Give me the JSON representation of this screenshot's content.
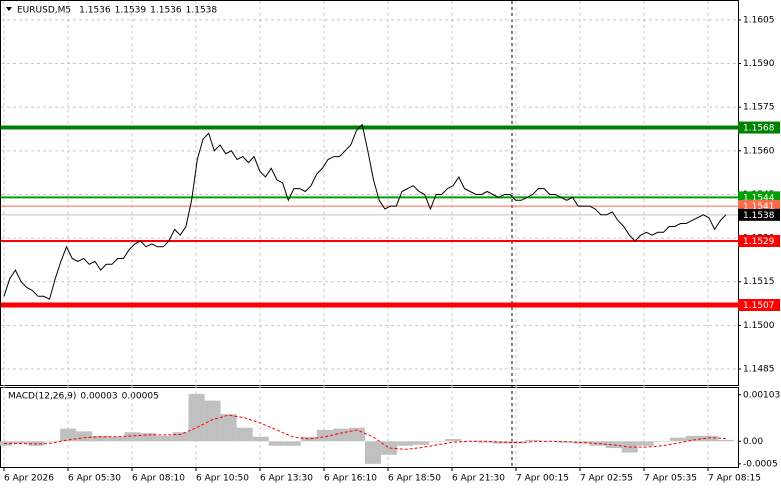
{
  "chart_data": [
    {
      "type": "line",
      "title": "EURUSD,M5",
      "ohlc": [
        1.1536,
        1.1539,
        1.1536,
        1.1538
      ],
      "color": "#000000",
      "values": [
        1.151,
        1.1516,
        1.1519,
        1.1515,
        1.1513,
        1.1512,
        1.151,
        1.151,
        1.1509,
        1.1516,
        1.1522,
        1.1527,
        1.1523,
        1.1522,
        1.1523,
        1.1521,
        1.1522,
        1.1519,
        1.1521,
        1.1521,
        1.1523,
        1.1523,
        1.1526,
        1.1528,
        1.1529,
        1.1527,
        1.1528,
        1.1527,
        1.1527,
        1.1529,
        1.1533,
        1.1531,
        1.1534,
        1.1543,
        1.1557,
        1.1564,
        1.1566,
        1.156,
        1.1562,
        1.1559,
        1.156,
        1.1557,
        1.1558,
        1.1556,
        1.1558,
        1.1553,
        1.1551,
        1.1554,
        1.155,
        1.1549,
        1.1543,
        1.1547,
        1.1547,
        1.1546,
        1.1548,
        1.1552,
        1.1554,
        1.1557,
        1.1558,
        1.1558,
        1.156,
        1.1562,
        1.1567,
        1.1569,
        1.156,
        1.155,
        1.1543,
        1.154,
        1.1541,
        1.1541,
        1.1546,
        1.1547,
        1.1548,
        1.1546,
        1.1545,
        1.154,
        1.1545,
        1.1545,
        1.1547,
        1.1548,
        1.1551,
        1.1547,
        1.1546,
        1.1545,
        1.1545,
        1.1546,
        1.1545,
        1.1544,
        1.1545,
        1.1545,
        1.1543,
        1.1543,
        1.1544,
        1.1545,
        1.1547,
        1.1547,
        1.1545,
        1.1545,
        1.1544,
        1.1543,
        1.1544,
        1.1541,
        1.1541,
        1.1541,
        1.154,
        1.1538,
        1.1538,
        1.1539,
        1.1536,
        1.1534,
        1.1531,
        1.1529,
        1.1531,
        1.1532,
        1.1531,
        1.1532,
        1.1532,
        1.1534,
        1.1534,
        1.1535,
        1.1535,
        1.1536,
        1.1537,
        1.1538,
        1.1537,
        1.1533,
        1.1536,
        1.1538
      ],
      "x_labels": [
        "6 Apr 2026",
        "6 Apr 05:30",
        "6 Apr 08:10",
        "6 Apr 10:50",
        "6 Apr 13:30",
        "6 Apr 16:10",
        "6 Apr 18:50",
        "6 Apr 21:30",
        "7 Apr 00:15",
        "7 Apr 02:55",
        "7 Apr 05:35",
        "7 Apr 08:15"
      ],
      "ylim": [
        1.14795,
        1.16115
      ],
      "yticks": [
        1.1605,
        {
          "value": 1.159,
          "label": "1.1590"
        },
        1.1575,
        {
          "value": 1.156,
          "label": "1.1560"
        },
        1.1545,
        {
          "value": 1.153,
          "label": "1.1530"
        },
        1.1515,
        {
          "value": 1.15,
          "label": "1.1500"
        },
        1.1485
      ],
      "levels": [
        {
          "value": 1.1568,
          "color": "#008000",
          "width": 4
        },
        {
          "value": 1.1544,
          "color": "#00a000",
          "width": 2
        },
        {
          "value": 1.1541,
          "color": "#ff6a4d",
          "width": 1
        },
        {
          "value": 1.1538,
          "color": "#c0c0c0",
          "width": 1,
          "label_color": "#000000"
        },
        {
          "value": 1.1529,
          "color": "#ff0000",
          "width": 2
        },
        {
          "value": 1.1507,
          "color": "#ff0000",
          "width": 5
        }
      ],
      "grid": true
    },
    {
      "type": "bar",
      "title": "MACD(12,26,9)",
      "readings": [
        3e-05,
        5e-05
      ],
      "color": "#c0c0c0",
      "signal_color": "#ff0000",
      "values": [
        -0.0001,
        -5e-05,
        -0.0001,
        0,
        0.00028,
        0.00022,
        0.00012,
        0.0001,
        0.0002,
        0.00018,
        0.00012,
        0.0002,
        0.00105,
        0.0009,
        0.0006,
        0.0003,
        0.0001,
        -0.0001,
        -0.0001,
        0.0001,
        0.00025,
        0.00028,
        0.0003,
        -0.0005,
        -0.0003,
        -0.0001,
        -8e-05,
        0,
        5e-05,
        0,
        -3e-05,
        -5e-05,
        -5e-05,
        3e-05,
        0,
        -3e-05,
        -5e-05,
        -0.0001,
        -0.00015,
        -0.00025,
        -0.0001,
        0,
        8e-05,
        0.00012,
        0.00012,
        3e-05
      ],
      "signal": [
        -5e-05,
        -5e-05,
        -6e-05,
        -4e-05,
        3e-05,
        8e-05,
        0.0001,
        0.0001,
        0.00012,
        0.00014,
        0.00014,
        0.00015,
        0.0003,
        0.00048,
        0.00058,
        0.00052,
        0.0004,
        0.00025,
        0.0001,
        5e-05,
        0.0001,
        0.00018,
        0.00025,
        0.0001,
        -0.00015,
        -0.00018,
        -0.00014,
        -8e-05,
        -2e-05,
        0,
        0,
        -2e-05,
        -3e-05,
        -1e-05,
        0,
        -1e-05,
        -3e-05,
        -5e-05,
        -8e-05,
        -0.00013,
        -0.00013,
        -0.0001,
        -4e-05,
        3e-05,
        8e-05,
        6e-05
      ],
      "ylim": [
        -0.00057,
        0.00118
      ],
      "yticks": [
        0.00103,
        {
          "value": 0,
          "label": "0.00"
        },
        -0.0005
      ]
    }
  ]
}
